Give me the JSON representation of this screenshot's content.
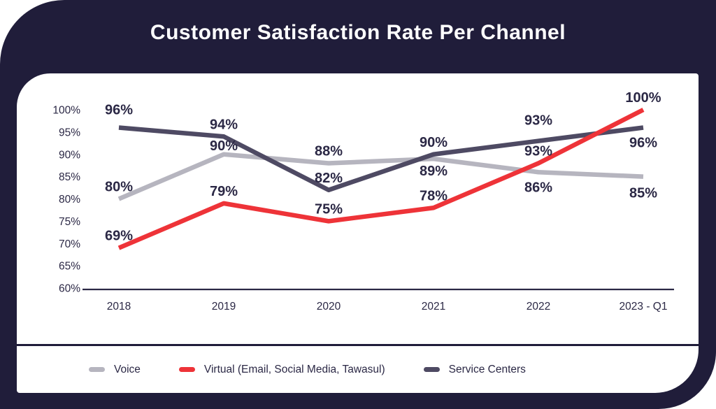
{
  "title": "Customer Satisfaction Rate Per Channel",
  "colors": {
    "background": "#201d3a",
    "panel": "#ffffff",
    "title_text": "#ffffff",
    "axis_text": "#2b2845",
    "divider": "#201d3a"
  },
  "chart_data": {
    "type": "line",
    "title": "Customer Satisfaction Rate Per Channel",
    "categories": [
      "2018",
      "2019",
      "2020",
      "2021",
      "2022",
      "2023 - Q1"
    ],
    "series": [
      {
        "name": "Voice",
        "color": "#b6b5bf",
        "values": [
          80,
          90,
          88,
          89,
          86,
          85
        ]
      },
      {
        "name": "Virtual (Email, Social Media, Tawasul)",
        "color": "#ee3338",
        "values": [
          69,
          79,
          75,
          78,
          93,
          100
        ]
      },
      {
        "name": "Service Centers",
        "color": "#4e4a63",
        "values": [
          96,
          94,
          82,
          90,
          93,
          96
        ]
      }
    ],
    "unit": "%",
    "y_ticks": [
      100,
      95,
      90,
      85,
      80,
      75,
      70,
      65,
      60
    ],
    "ylim": [
      60,
      100
    ],
    "grid": false,
    "legend_position": "bottom"
  }
}
